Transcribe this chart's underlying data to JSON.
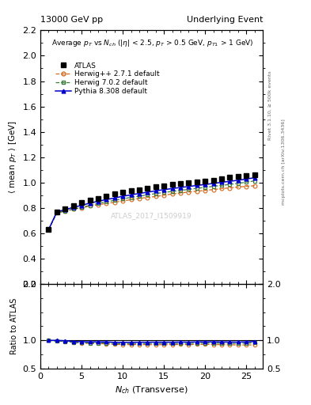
{
  "title_left": "13000 GeV pp",
  "title_right": "Underlying Event",
  "right_label_top": "Rivet 3.1.10, ≥ 500k events",
  "right_label_bottom": "mcplots.cern.ch [arXiv:1306.3436]",
  "watermark": "ATLAS_2017_I1509919",
  "atlas_x": [
    1,
    2,
    3,
    4,
    5,
    6,
    7,
    8,
    9,
    10,
    11,
    12,
    13,
    14,
    15,
    16,
    17,
    18,
    19,
    20,
    21,
    22,
    23,
    24,
    25,
    26
  ],
  "atlas_y": [
    0.63,
    0.77,
    0.79,
    0.82,
    0.84,
    0.86,
    0.875,
    0.89,
    0.91,
    0.925,
    0.935,
    0.945,
    0.955,
    0.965,
    0.975,
    0.985,
    0.99,
    1.0,
    1.005,
    1.01,
    1.02,
    1.03,
    1.04,
    1.05,
    1.055,
    1.06
  ],
  "herwig271_x": [
    1,
    2,
    3,
    4,
    5,
    6,
    7,
    8,
    9,
    10,
    11,
    12,
    13,
    14,
    15,
    16,
    17,
    18,
    19,
    20,
    21,
    22,
    23,
    24,
    25,
    26
  ],
  "herwig271_y": [
    0.63,
    0.765,
    0.775,
    0.79,
    0.8,
    0.815,
    0.825,
    0.835,
    0.845,
    0.855,
    0.865,
    0.875,
    0.883,
    0.89,
    0.9,
    0.91,
    0.918,
    0.925,
    0.932,
    0.938,
    0.945,
    0.952,
    0.958,
    0.965,
    0.97,
    0.975
  ],
  "herwig702_x": [
    1,
    2,
    3,
    4,
    5,
    6,
    7,
    8,
    9,
    10,
    11,
    12,
    13,
    14,
    15,
    16,
    17,
    18,
    19,
    20,
    21,
    22,
    23,
    24,
    25,
    26
  ],
  "herwig702_y": [
    0.63,
    0.76,
    0.775,
    0.79,
    0.805,
    0.82,
    0.835,
    0.848,
    0.86,
    0.872,
    0.883,
    0.893,
    0.903,
    0.913,
    0.922,
    0.93,
    0.938,
    0.946,
    0.954,
    0.962,
    0.97,
    0.978,
    0.985,
    0.993,
    1.003,
    1.013
  ],
  "pythia_x": [
    1,
    2,
    3,
    4,
    5,
    6,
    7,
    8,
    9,
    10,
    11,
    12,
    13,
    14,
    15,
    16,
    17,
    18,
    19,
    20,
    21,
    22,
    23,
    24,
    25,
    26
  ],
  "pythia_y": [
    0.63,
    0.77,
    0.785,
    0.805,
    0.82,
    0.838,
    0.852,
    0.866,
    0.878,
    0.892,
    0.903,
    0.914,
    0.924,
    0.935,
    0.944,
    0.953,
    0.961,
    0.969,
    0.977,
    0.985,
    0.993,
    1.002,
    1.01,
    1.018,
    1.028,
    1.038
  ],
  "atlas_color": "black",
  "herwig271_color": "#d2691e",
  "herwig702_color": "#3a7d3a",
  "pythia_color": "#0000cc",
  "atlas_label": "ATLAS",
  "herwig271_label": "Herwig++ 2.7.1 default",
  "herwig702_label": "Herwig 7.0.2 default",
  "pythia_label": "Pythia 8.308 default",
  "ylim_main": [
    0.2,
    2.2
  ],
  "ylim_ratio": [
    0.5,
    2.0
  ],
  "xlim": [
    0,
    27
  ],
  "yticks_main": [
    0.2,
    0.4,
    0.6,
    0.8,
    1.0,
    1.2,
    1.4,
    1.6,
    1.8,
    2.0,
    2.2
  ],
  "yticks_ratio": [
    0.5,
    1.0,
    2.0
  ],
  "xticks_ratio": [
    0,
    5,
    10,
    15,
    20,
    25
  ]
}
